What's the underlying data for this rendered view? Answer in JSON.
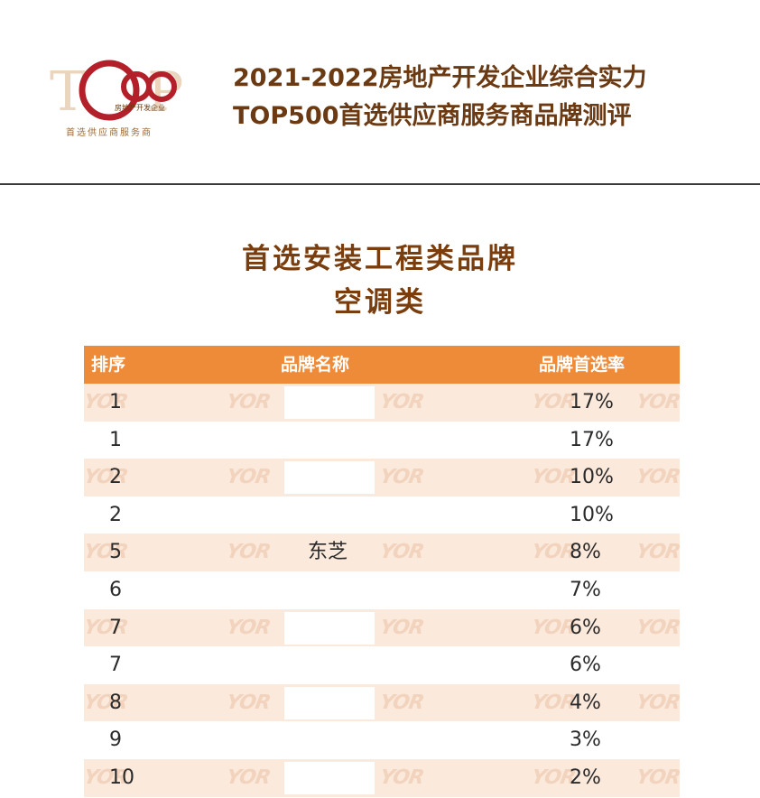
{
  "header": {
    "logo": {
      "mark": "TOP500",
      "inner_text": "房地产开发企业",
      "tagline": "首选供应商服务商"
    },
    "title_line1": "2021-2022房地产开发企业综合实力",
    "title_line2": "TOP500首选供应商服务商品牌测评"
  },
  "section": {
    "title": "首选安装工程类品牌",
    "subtitle": "空调类"
  },
  "table": {
    "columns": [
      "排序",
      "品牌名称",
      "品牌首选率"
    ],
    "rows": [
      {
        "rank": "1",
        "name": "",
        "rate": "17%"
      },
      {
        "rank": "1",
        "name": "",
        "rate": "17%"
      },
      {
        "rank": "2",
        "name": "",
        "rate": "10%"
      },
      {
        "rank": "2",
        "name": "",
        "rate": "10%"
      },
      {
        "rank": "5",
        "name": "东芝",
        "rate": "8%"
      },
      {
        "rank": "6",
        "name": "",
        "rate": "7%"
      },
      {
        "rank": "7",
        "name": "",
        "rate": "6%"
      },
      {
        "rank": "7",
        "name": "",
        "rate": "6%"
      },
      {
        "rank": "8",
        "name": "",
        "rate": "4%"
      },
      {
        "rank": "9",
        "name": "",
        "rate": "3%"
      },
      {
        "rank": "10",
        "name": "",
        "rate": "2%"
      }
    ],
    "watermark": "YOR"
  },
  "colors": {
    "header_text": "#6b3a12",
    "table_header": "#ee8b39",
    "row_alt": "#fbe9dc",
    "logo_red": "#b3202a"
  }
}
